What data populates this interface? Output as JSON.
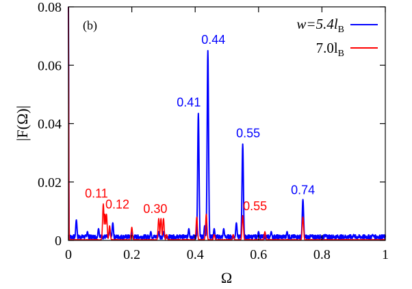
{
  "chart_data": {
    "type": "line",
    "panel_label": "(b)",
    "xlabel": "Ω",
    "ylabel": "|F(Ω)|",
    "xlim": [
      0,
      1
    ],
    "ylim": [
      0,
      0.08
    ],
    "x_ticks": [
      0,
      0.2,
      0.4,
      0.6,
      0.8,
      1
    ],
    "x_tick_labels": [
      "0",
      "0.2",
      "0.4",
      "0.6",
      "0.8",
      "1"
    ],
    "y_ticks": [
      0,
      0.02,
      0.04,
      0.06,
      0.08
    ],
    "y_tick_labels": [
      "0",
      "0.02",
      "0.04",
      "0.06",
      "0.08"
    ],
    "grid": false,
    "legend_position": "top-right",
    "series": [
      {
        "name": "w=5.4l_B",
        "legend_main": "w=5.4l",
        "legend_sub": "B",
        "color": "#0000ff",
        "baseline": 0.0012,
        "peaks": [
          [
            0.0,
            0.08
          ],
          [
            0.025,
            0.007
          ],
          [
            0.06,
            0.003
          ],
          [
            0.095,
            0.004
          ],
          [
            0.13,
            0.004
          ],
          [
            0.14,
            0.006
          ],
          [
            0.2,
            0.003
          ],
          [
            0.26,
            0.003
          ],
          [
            0.285,
            0.003
          ],
          [
            0.3,
            0.003
          ],
          [
            0.38,
            0.004
          ],
          [
            0.41,
            0.0435
          ],
          [
            0.43,
            0.005
          ],
          [
            0.44,
            0.065
          ],
          [
            0.46,
            0.004
          ],
          [
            0.49,
            0.004
          ],
          [
            0.53,
            0.006
          ],
          [
            0.55,
            0.033
          ],
          [
            0.6,
            0.003
          ],
          [
            0.64,
            0.003
          ],
          [
            0.69,
            0.003
          ],
          [
            0.74,
            0.014
          ],
          [
            0.81,
            0.002
          ],
          [
            0.9,
            0.002
          ],
          [
            0.96,
            0.002
          ]
        ]
      },
      {
        "name": "7.0l_B",
        "legend_main": "7.0l",
        "legend_sub": "B",
        "color": "#ff0000",
        "baseline": 0.0002,
        "peaks": [
          [
            0.0,
            0.08
          ],
          [
            0.11,
            0.0125
          ],
          [
            0.115,
            0.009
          ],
          [
            0.12,
            0.009
          ],
          [
            0.13,
            0.005
          ],
          [
            0.2,
            0.0045
          ],
          [
            0.285,
            0.0075
          ],
          [
            0.292,
            0.0075
          ],
          [
            0.3,
            0.0075
          ],
          [
            0.31,
            0.002
          ],
          [
            0.405,
            0.008
          ],
          [
            0.435,
            0.009
          ],
          [
            0.46,
            0.002
          ],
          [
            0.52,
            0.002
          ],
          [
            0.55,
            0.0085
          ],
          [
            0.62,
            0.003
          ],
          [
            0.74,
            0.008
          ]
        ]
      }
    ],
    "annotations": [
      {
        "text": "0.41",
        "x": 0.41,
        "y": 0.0435,
        "color": "#0000ff"
      },
      {
        "text": "0.44",
        "x": 0.44,
        "y": 0.065,
        "color": "#0000ff"
      },
      {
        "text": "0.55",
        "x": 0.55,
        "y": 0.033,
        "color": "#0000ff"
      },
      {
        "text": "0.74",
        "x": 0.74,
        "y": 0.014,
        "color": "#0000ff"
      },
      {
        "text": "0.11",
        "x": 0.11,
        "y": 0.0125,
        "color": "#ff0000"
      },
      {
        "text": "0.12",
        "x": 0.12,
        "y": 0.009,
        "color": "#ff0000"
      },
      {
        "text": "0.30",
        "x": 0.3,
        "y": 0.0075,
        "color": "#ff0000"
      },
      {
        "text": "0.55",
        "x": 0.55,
        "y": 0.0085,
        "color": "#ff0000"
      }
    ]
  }
}
